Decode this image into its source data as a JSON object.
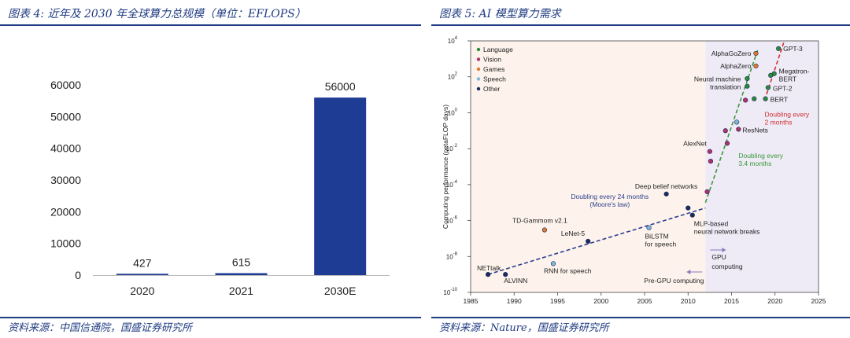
{
  "left_panel": {
    "title": "图表 4: 近年及 2030 年全球算力总规模（单位：EFLOPS）",
    "source": "资料来源：中国信通院，国盛证券研究所"
  },
  "right_panel": {
    "title": "图表 5: AI 模型算力需求",
    "source": "资料来源：Nature，国盛证券研究所"
  },
  "colors": {
    "bar": "#1f3c94",
    "title": "#1f3b82",
    "language": "#2a8a3a",
    "vision": "#b0306a",
    "games": "#e07a30",
    "speech": "#7fb8d8",
    "other": "#1b2a5c",
    "moore_line": "#2c3f8f",
    "trend_green": "#3a9a3a",
    "trend_red": "#d03030",
    "pre_gpu_bg": "#fdf3ec",
    "gpu_bg": "#eeeaf6"
  },
  "chart_data": [
    {
      "type": "bar",
      "categories": [
        "2020",
        "2021",
        "2030E"
      ],
      "values": [
        427,
        615,
        56000
      ],
      "data_labels": [
        "427",
        "615",
        "56000"
      ],
      "y_ticks": [
        "0",
        "10000",
        "20000",
        "30000",
        "40000",
        "50000",
        "60000"
      ],
      "ylim": [
        0,
        60000
      ],
      "grid": false
    },
    {
      "type": "scatter",
      "y_scale": "log",
      "xlabel": "",
      "ylabel": "Computing performance (petaFLOP days)",
      "xlim": [
        1985,
        2025
      ],
      "ylim": [
        1e-10,
        10000
      ],
      "x_ticks": [
        "1985",
        "1990",
        "1995",
        "2000",
        "2005",
        "2010",
        "2015",
        "2020",
        "2025"
      ],
      "y_ticks": [
        {
          "base": "10",
          "exp": "4"
        },
        {
          "base": "10",
          "exp": "2"
        },
        {
          "base": "10",
          "exp": "0"
        },
        {
          "base": "10",
          "exp": "-2"
        },
        {
          "base": "10",
          "exp": "-4"
        },
        {
          "base": "10",
          "exp": "-6"
        },
        {
          "base": "10",
          "exp": "-8"
        },
        {
          "base": "10",
          "exp": "-10"
        }
      ],
      "legend": {
        "placement": "top-left",
        "items": [
          {
            "label": "Language",
            "category": "language"
          },
          {
            "label": "Vision",
            "category": "vision"
          },
          {
            "label": "Games",
            "category": "games"
          },
          {
            "label": "Speech",
            "category": "speech"
          },
          {
            "label": "Other",
            "category": "other"
          }
        ]
      },
      "regions": [
        {
          "label": "Pre-GPU computing",
          "from": 1985,
          "to": 2012
        },
        {
          "label": "GPU computing",
          "from": 2012,
          "to": 2025
        }
      ],
      "points": [
        {
          "label": "NETtalk",
          "x": 1987,
          "y": 1e-09,
          "category": "other"
        },
        {
          "label": "ALVINN",
          "x": 1989,
          "y": 1e-09,
          "category": "other"
        },
        {
          "label": "TD-Gammom v2.1",
          "x": 1993.5,
          "y": 3e-07,
          "category": "games"
        },
        {
          "label": "RNN for speech",
          "x": 1994.5,
          "y": 4e-09,
          "category": "speech"
        },
        {
          "label": "LeNet-5",
          "x": 1998.5,
          "y": 7e-08,
          "category": "other"
        },
        {
          "label": "BiLSTM for speech",
          "x": 2005.5,
          "y": 4e-07,
          "category": "speech"
        },
        {
          "label": "Deep belief networks",
          "x": 2007.5,
          "y": 3e-05,
          "category": "other"
        },
        {
          "label": "MLP-based neural network breaks",
          "x": 2010.5,
          "y": 2e-06,
          "category": "other"
        },
        {
          "label": "",
          "x": 2010,
          "y": 5e-06,
          "category": "other"
        },
        {
          "label": "",
          "x": 2012.2,
          "y": 4e-05,
          "category": "vision"
        },
        {
          "label": "AlexNet",
          "x": 2012.5,
          "y": 0.007,
          "category": "vision"
        },
        {
          "label": "",
          "x": 2012.6,
          "y": 0.002,
          "category": "vision"
        },
        {
          "label": "",
          "x": 2014.5,
          "y": 0.02,
          "category": "vision"
        },
        {
          "label": "",
          "x": 2014.3,
          "y": 0.1,
          "category": "vision"
        },
        {
          "label": "ResNets",
          "x": 2015.8,
          "y": 0.12,
          "category": "vision"
        },
        {
          "label": "",
          "x": 2015.6,
          "y": 0.3,
          "category": "speech"
        },
        {
          "label": "",
          "x": 2016.6,
          "y": 5,
          "category": "vision"
        },
        {
          "label": "",
          "x": 2017.6,
          "y": 6,
          "category": "language"
        },
        {
          "label": "Neural machine translation",
          "x": 2016.8,
          "y": 30,
          "category": "language"
        },
        {
          "label": "",
          "x": 2016.8,
          "y": 80,
          "category": "language"
        },
        {
          "label": "AlphaZero",
          "x": 2017.8,
          "y": 400,
          "category": "games"
        },
        {
          "label": "AlphaGoZero",
          "x": 2017.8,
          "y": 2000,
          "category": "games"
        },
        {
          "label": "BERT",
          "x": 2018.9,
          "y": 6,
          "category": "language"
        },
        {
          "label": "GPT-2",
          "x": 2019.2,
          "y": 25,
          "category": "language"
        },
        {
          "label": "Megatron-BERT",
          "x": 2019.9,
          "y": 150,
          "category": "language"
        },
        {
          "label": "",
          "x": 2019.5,
          "y": 120,
          "category": "language"
        },
        {
          "label": "GPT-3",
          "x": 2020.4,
          "y": 3700,
          "category": "language"
        }
      ],
      "trend_lines": [
        {
          "label": "Doubling every 24 months (Moore's law)",
          "category": "moore",
          "from": [
            1987,
            1e-09
          ],
          "to": [
            2012,
            5e-06
          ]
        },
        {
          "label": "Doubling every 3.4 months",
          "category": "green",
          "from": [
            2012,
            1e-05
          ],
          "to": [
            2018,
            3000
          ]
        },
        {
          "label": "Doubling every 2 months",
          "category": "red",
          "from": [
            2018.8,
            5
          ],
          "to": [
            2021,
            8000
          ]
        }
      ]
    }
  ]
}
